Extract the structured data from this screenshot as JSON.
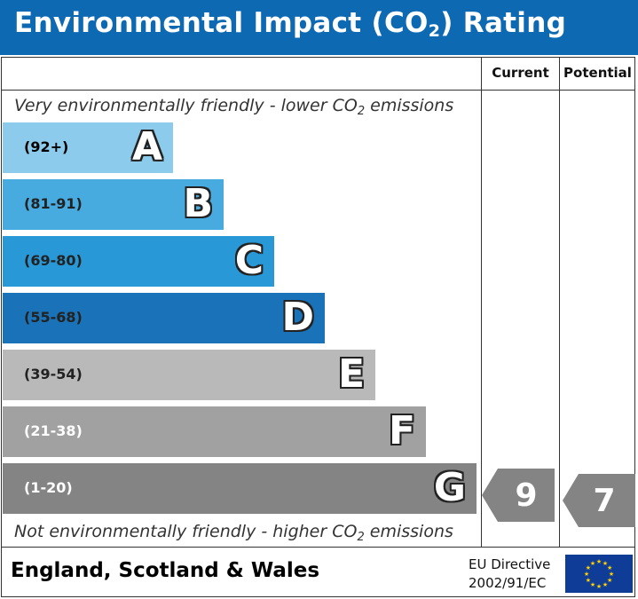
{
  "header": {
    "title_main": "Environmental Impact (CO",
    "title_sub": "2",
    "title_end": ") Rating"
  },
  "columns": {
    "current": "Current",
    "potential": "Potential"
  },
  "captions": {
    "top_main": "Very environmentally friendly - lower CO",
    "top_sub": "2",
    "top_end": " emissions",
    "bottom_main": "Not environmentally friendly - higher CO",
    "bottom_sub": "2",
    "bottom_end": " emissions"
  },
  "chart_data": {
    "type": "bar",
    "title": "Environmental Impact (CO2) Rating",
    "categories": [
      "A",
      "B",
      "C",
      "D",
      "E",
      "F",
      "G"
    ],
    "ranges": [
      "(92+)",
      "(81-91)",
      "(69-80)",
      "(55-68)",
      "(39-54)",
      "(21-38)",
      "(1-20)"
    ],
    "colors": [
      "#8ccbec",
      "#47abe0",
      "#2898d6",
      "#1a72b8",
      "#b9b9b9",
      "#a1a1a1",
      "#848484"
    ],
    "range_text_colors": [
      "#000000",
      "#222222",
      "#222222",
      "#222222",
      "#222222",
      "#ffffff",
      "#ffffff"
    ],
    "current": {
      "value": 9,
      "band": "G"
    },
    "potential": {
      "value": 7,
      "band": "G"
    },
    "pointer_color": "#848484"
  },
  "footer": {
    "region": "England, Scotland & Wales",
    "directive_line1": "EU Directive",
    "directive_line2": "2002/91/EC"
  },
  "icons": {
    "eu_flag": "eu-flag-icon"
  },
  "colors": {
    "header_bg": "#0e69b3",
    "flag_bg": "#0f3c96",
    "flag_star": "#ffd200"
  }
}
